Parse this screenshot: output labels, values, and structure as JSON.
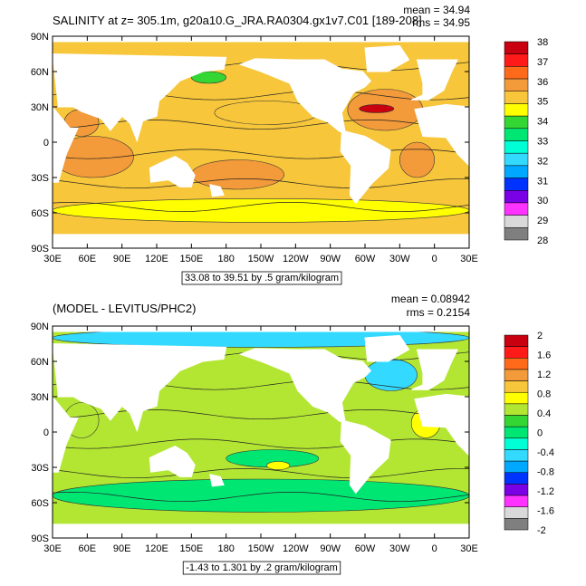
{
  "chart_data": [
    {
      "type": "heatmap",
      "title": "SALINITY at z= 305.1m, g20a10.G_JRA.RA0304.gx1v7.C01 [189-208]",
      "stats": {
        "mean": "mean = 34.94",
        "rms": "rms = 34.95"
      },
      "x_ticks": [
        "30E",
        "60E",
        "90E",
        "120E",
        "150E",
        "180",
        "150W",
        "120W",
        "90W",
        "60W",
        "30W",
        "0",
        "30E"
      ],
      "y_ticks": [
        "90N",
        "60N",
        "30N",
        "0",
        "30S",
        "60S",
        "90S"
      ],
      "xlim": [
        30,
        390
      ],
      "ylim": [
        -90,
        90
      ],
      "range_label": "33.08 to 39.51 by .5 gram/kilogram",
      "colorbar": {
        "labels": [
          "38",
          "37",
          "36",
          "35",
          "34",
          "33",
          "32",
          "31",
          "30",
          "29",
          "28"
        ],
        "colors": [
          "#c8000f",
          "#ff1a1a",
          "#ff6a1a",
          "#f39a3a",
          "#f7c63a",
          "#ffff00",
          "#33d633",
          "#00e673",
          "#00ffd5",
          "#33d9ff",
          "#00a8ff",
          "#0033ff",
          "#7a00e6",
          "#ff33ff",
          "#d9d9d9",
          "#7f7f7f"
        ]
      },
      "fields": [
        {
          "lon": [
            30,
            100
          ],
          "lat": [
            -30,
            5
          ],
          "color": "#f39a3a"
        },
        {
          "lon": [
            40,
            70
          ],
          "lat": [
            5,
            28
          ],
          "color": "#f39a3a"
        },
        {
          "lon": [
            150,
            230
          ],
          "lat": [
            -40,
            -15
          ],
          "color": "#f39a3a"
        },
        {
          "lon": [
            170,
            260
          ],
          "lat": [
            15,
            35
          ],
          "color": "#f7c63a"
        },
        {
          "lon": [
            285,
            350
          ],
          "lat": [
            10,
            45
          ],
          "color": "#f39a3a"
        },
        {
          "lon": [
            330,
            360
          ],
          "lat": [
            -30,
            0
          ],
          "color": "#f39a3a"
        },
        {
          "lon": [
            295,
            325
          ],
          "lat": [
            25,
            32
          ],
          "color": "#c8000f"
        },
        {
          "lon": [
            150,
            180
          ],
          "lat": [
            50,
            60
          ],
          "color": "#33d633"
        },
        {
          "lon": [
            30,
            390
          ],
          "lat": [
            -68,
            -48
          ],
          "color": "#ffff00"
        }
      ]
    },
    {
      "type": "heatmap",
      "title": "(MODEL - LEVITUS/PHC2)",
      "stats": {
        "mean": "mean = 0.08942",
        "rms": "rms = 0.2154"
      },
      "x_ticks": [
        "30E",
        "60E",
        "90E",
        "120E",
        "150E",
        "180",
        "150W",
        "120W",
        "90W",
        "60W",
        "30W",
        "0",
        "30E"
      ],
      "y_ticks": [
        "90N",
        "60N",
        "30N",
        "0",
        "30S",
        "60S",
        "90S"
      ],
      "xlim": [
        30,
        390
      ],
      "ylim": [
        -90,
        90
      ],
      "range_label": "-1.43 to 1.301 by .2 gram/kilogram",
      "colorbar": {
        "labels": [
          "2",
          "1.6",
          "1.2",
          "0.8",
          "0.4",
          "0",
          "-0.4",
          "-0.8",
          "-1.2",
          "-1.6",
          "-2"
        ],
        "colors": [
          "#c8000f",
          "#ff1a1a",
          "#ff6a1a",
          "#f39a3a",
          "#f7c63a",
          "#ffff00",
          "#b3e633",
          "#33d633",
          "#00e673",
          "#00ffd5",
          "#33d9ff",
          "#00a8ff",
          "#0033ff",
          "#7a00e6",
          "#ff33ff",
          "#d9d9d9",
          "#7f7f7f"
        ]
      },
      "fields": [
        {
          "lon": [
            30,
            390
          ],
          "lat": [
            -68,
            -40
          ],
          "color": "#00e673"
        },
        {
          "lon": [
            180,
            260
          ],
          "lat": [
            -30,
            -15
          ],
          "color": "#00e673"
        },
        {
          "lon": [
            215,
            235
          ],
          "lat": [
            -32,
            -25
          ],
          "color": "#ffff00"
        },
        {
          "lon": [
            30,
            390
          ],
          "lat": [
            72,
            88
          ],
          "color": "#33d9ff"
        },
        {
          "lon": [
            300,
            345
          ],
          "lat": [
            35,
            62
          ],
          "color": "#33d9ff"
        },
        {
          "lon": [
            340,
            365
          ],
          "lat": [
            -5,
            20
          ],
          "color": "#ffff00"
        },
        {
          "lon": [
            40,
            70
          ],
          "lat": [
            -5,
            25
          ],
          "color": "#b3e633"
        }
      ]
    }
  ]
}
